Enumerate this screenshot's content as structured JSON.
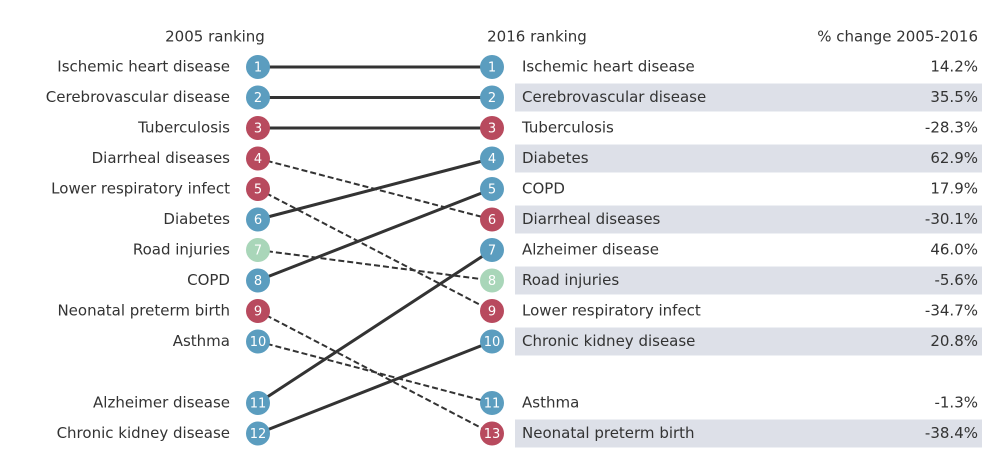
{
  "chart_data": {
    "type": "slope",
    "left_title": "2005 ranking",
    "right_title": "2016 ranking",
    "change_title": "% change 2005-2016",
    "left": [
      {
        "label": "Ischemic heart disease",
        "rank": 1,
        "color": "#5b9dbf"
      },
      {
        "label": "Cerebrovascular disease",
        "rank": 2,
        "color": "#5b9dbf"
      },
      {
        "label": "Tuberculosis",
        "rank": 3,
        "color": "#b84a5e"
      },
      {
        "label": "Diarrheal diseases",
        "rank": 4,
        "color": "#b84a5e"
      },
      {
        "label": "Lower respiratory infect",
        "rank": 5,
        "color": "#b84a5e"
      },
      {
        "label": "Diabetes",
        "rank": 6,
        "color": "#5b9dbf"
      },
      {
        "label": "Road injuries",
        "rank": 7,
        "color": "#a9d6b9"
      },
      {
        "label": "COPD",
        "rank": 8,
        "color": "#5b9dbf"
      },
      {
        "label": "Neonatal preterm birth",
        "rank": 9,
        "color": "#b84a5e"
      },
      {
        "label": "Asthma",
        "rank": 10,
        "color": "#5b9dbf"
      },
      {
        "label": "Alzheimer disease",
        "rank": 11,
        "color": "#5b9dbf"
      },
      {
        "label": "Chronic kidney disease",
        "rank": 12,
        "color": "#5b9dbf"
      }
    ],
    "right": [
      {
        "label": "Ischemic heart disease",
        "rank": 1,
        "color": "#5b9dbf"
      },
      {
        "label": "Cerebrovascular disease",
        "rank": 2,
        "color": "#5b9dbf"
      },
      {
        "label": "Tuberculosis",
        "rank": 3,
        "color": "#b84a5e"
      },
      {
        "label": "Diabetes",
        "rank": 4,
        "color": "#5b9dbf"
      },
      {
        "label": "COPD",
        "rank": 5,
        "color": "#5b9dbf"
      },
      {
        "label": "Diarrheal diseases",
        "rank": 6,
        "color": "#b84a5e"
      },
      {
        "label": "Alzheimer disease",
        "rank": 7,
        "color": "#5b9dbf"
      },
      {
        "label": "Road injuries",
        "rank": 8,
        "color": "#a9d6b9"
      },
      {
        "label": "Lower respiratory infect",
        "rank": 9,
        "color": "#b84a5e"
      },
      {
        "label": "Chronic kidney disease",
        "rank": 10,
        "color": "#5b9dbf"
      },
      {
        "label": "Asthma",
        "rank": 11,
        "color": "#5b9dbf"
      },
      {
        "label": "Neonatal preterm birth",
        "rank": 13,
        "color": "#b84a5e"
      }
    ],
    "values": [
      14.2,
      35.5,
      -28.3,
      62.9,
      17.9,
      -30.1,
      46.0,
      -5.6,
      -34.7,
      20.8,
      -1.3,
      -38.4
    ],
    "value_labels": [
      "14.2%",
      "35.5%",
      "-28.3%",
      "62.9%",
      "17.9%",
      "-30.1%",
      "46.0%",
      "-5.6%",
      "-34.7%",
      "20.8%",
      "-1.3%",
      "-38.4%"
    ]
  }
}
